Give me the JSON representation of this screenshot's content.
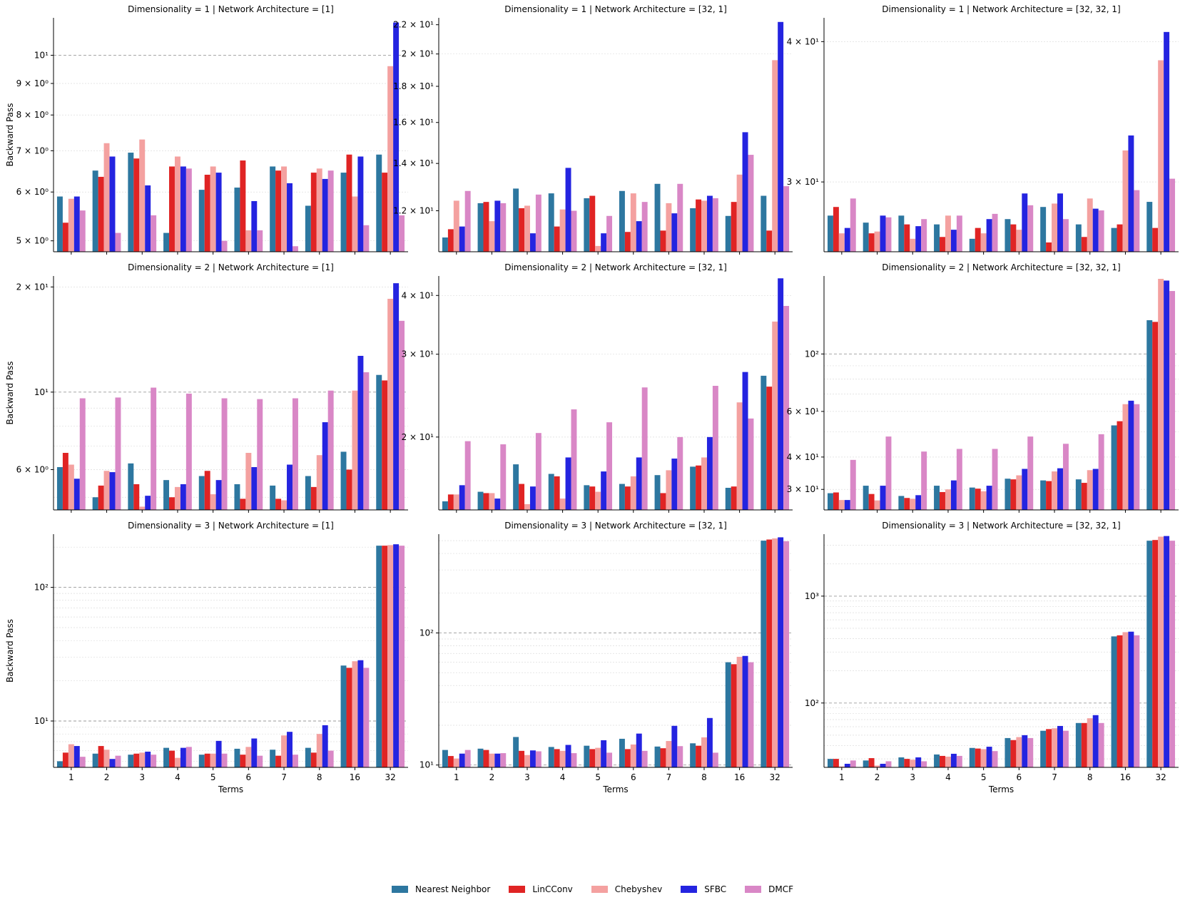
{
  "chart_data": {
    "type": "bar",
    "ylabel": "Backward Pass",
    "xlabel": "Terms",
    "categories": [
      "1",
      "2",
      "3",
      "4",
      "5",
      "6",
      "7",
      "8",
      "16",
      "32"
    ],
    "legend": {
      "placement": "bottom-center",
      "entries": [
        {
          "name": "Nearest Neighbor",
          "color": "#2d77a0"
        },
        {
          "name": "LinCConv",
          "color": "#e02424"
        },
        {
          "name": "Chebyshev",
          "color": "#f4a1a0"
        },
        {
          "name": "SFBC",
          "color": "#2424e0"
        },
        {
          "name": "DMCF",
          "color": "#d987c6"
        }
      ]
    },
    "panels": [
      {
        "title": "Dimensionality = 1 | Network Architecture = [1]",
        "yscale": "log",
        "ylim": [
          4.8,
          11.5
        ],
        "ticks": [
          {
            "v": 5,
            "label": "5 × 10⁰"
          },
          {
            "v": 6,
            "label": "6 × 10⁰"
          },
          {
            "v": 7,
            "label": "7 × 10⁰"
          },
          {
            "v": 8,
            "label": "8 × 10⁰"
          },
          {
            "v": 9,
            "label": "9 × 10⁰"
          },
          {
            "v": 10,
            "label": "10¹"
          }
        ],
        "show_ylabel": true,
        "show_xlabels": false,
        "series": [
          {
            "name": "Nearest Neighbor",
            "values": [
              5.9,
              6.5,
              6.95,
              5.15,
              6.05,
              6.1,
              6.6,
              5.7,
              6.45,
              6.9
            ]
          },
          {
            "name": "LinCConv",
            "values": [
              5.35,
              6.35,
              6.8,
              6.6,
              6.4,
              6.75,
              6.5,
              6.45,
              6.9,
              6.45
            ]
          },
          {
            "name": "Chebyshev",
            "values": [
              5.85,
              7.2,
              7.3,
              6.85,
              6.6,
              5.2,
              6.6,
              6.55,
              5.9,
              9.6
            ]
          },
          {
            "name": "SFBC",
            "values": [
              5.9,
              6.85,
              6.15,
              6.6,
              6.45,
              5.8,
              6.2,
              6.3,
              6.85,
              11.3
            ]
          },
          {
            "name": "DMCF",
            "values": [
              5.6,
              5.15,
              5.5,
              6.55,
              5.0,
              5.2,
              4.9,
              6.5,
              5.3,
              5.5
            ]
          }
        ]
      },
      {
        "title": "Dimensionality = 1 | Network Architecture = [32, 1]",
        "yscale": "log",
        "ylim": [
          10.5,
          22.5
        ],
        "ticks": [
          {
            "v": 12,
            "label": "1.2 × 10¹"
          },
          {
            "v": 14,
            "label": "1.4 × 10¹"
          },
          {
            "v": 16,
            "label": "1.6 × 10¹"
          },
          {
            "v": 18,
            "label": "1.8 × 10¹"
          },
          {
            "v": 20,
            "label": "2 × 10¹"
          },
          {
            "v": 22,
            "label": "2.2 × 10¹"
          }
        ],
        "show_ylabel": false,
        "show_xlabels": false,
        "series": [
          {
            "name": "Nearest Neighbor",
            "values": [
              11.0,
              12.3,
              12.9,
              12.7,
              12.5,
              12.8,
              13.1,
              12.1,
              11.8,
              12.6
            ]
          },
          {
            "name": "LinCConv",
            "values": [
              11.3,
              12.35,
              12.1,
              11.4,
              12.6,
              11.2,
              11.25,
              12.45,
              12.35,
              11.25
            ]
          },
          {
            "name": "Chebyshev",
            "values": [
              12.4,
              11.6,
              12.2,
              12.05,
              10.7,
              12.7,
              12.3,
              12.4,
              13.5,
              19.6
            ]
          },
          {
            "name": "SFBC",
            "values": [
              11.4,
              12.4,
              11.15,
              13.8,
              11.15,
              11.6,
              11.9,
              12.6,
              15.5,
              22.2
            ]
          },
          {
            "name": "DMCF",
            "values": [
              12.8,
              12.3,
              12.65,
              12.0,
              11.8,
              12.35,
              13.1,
              12.5,
              14.4,
              13.0
            ]
          }
        ]
      },
      {
        "title": "Dimensionality = 1 | Network Architecture = [32, 32, 1]",
        "yscale": "log",
        "ylim": [
          26,
          42
        ],
        "ticks": [
          {
            "v": 30,
            "label": "3 × 10¹"
          },
          {
            "v": 40,
            "label": "4 × 10¹"
          }
        ],
        "show_ylabel": false,
        "show_xlabels": false,
        "series": [
          {
            "name": "Nearest Neighbor",
            "values": [
              28.0,
              27.6,
              28.0,
              27.5,
              26.7,
              27.8,
              28.5,
              27.5,
              27.3,
              28.8
            ]
          },
          {
            "name": "LinCConv",
            "values": [
              28.5,
              27.0,
              27.5,
              26.8,
              27.3,
              27.5,
              26.5,
              26.8,
              27.5,
              27.3
            ]
          },
          {
            "name": "Chebyshev",
            "values": [
              27.0,
              27.1,
              26.7,
              28.0,
              27.0,
              27.2,
              28.7,
              29.0,
              32.0,
              38.5
            ]
          },
          {
            "name": "SFBC",
            "values": [
              27.3,
              28.0,
              27.4,
              27.2,
              27.8,
              29.3,
              29.3,
              28.4,
              33.0,
              40.8
            ]
          },
          {
            "name": "DMCF",
            "values": [
              29.0,
              27.9,
              27.8,
              28.0,
              28.1,
              28.6,
              27.8,
              28.3,
              29.5,
              30.2
            ]
          }
        ]
      },
      {
        "title": "Dimensionality = 2 | Network Architecture = [1]",
        "yscale": "log",
        "ylim": [
          4.6,
          21.5
        ],
        "ticks": [
          {
            "v": 6,
            "label": "6 × 10⁰"
          },
          {
            "v": 10,
            "label": "10¹"
          },
          {
            "v": 20,
            "label": "2 × 10¹"
          }
        ],
        "show_ylabel": true,
        "show_xlabels": false,
        "series": [
          {
            "name": "Nearest Neighbor",
            "values": [
              6.1,
              5.0,
              6.25,
              5.6,
              5.75,
              5.45,
              5.4,
              5.75,
              6.75,
              11.2
            ]
          },
          {
            "name": "LinCConv",
            "values": [
              6.7,
              5.4,
              5.45,
              5.0,
              5.95,
              4.95,
              4.95,
              5.35,
              6.0,
              10.8
            ]
          },
          {
            "name": "Chebyshev",
            "values": [
              6.2,
              5.95,
              4.7,
              5.35,
              5.1,
              6.7,
              4.9,
              6.6,
              10.1,
              18.5
            ]
          },
          {
            "name": "SFBC",
            "values": [
              5.65,
              5.9,
              5.05,
              5.45,
              5.6,
              6.1,
              6.2,
              8.2,
              12.7,
              20.5
            ]
          },
          {
            "name": "DMCF",
            "values": [
              9.6,
              9.65,
              10.3,
              9.9,
              9.6,
              9.55,
              9.6,
              10.1,
              11.4,
              16.0
            ]
          }
        ]
      },
      {
        "title": "Dimensionality = 2 | Network Architecture = [32, 1]",
        "yscale": "log",
        "ylim": [
          14,
          44
        ],
        "ticks": [
          {
            "v": 20,
            "label": "2 × 10¹"
          },
          {
            "v": 30,
            "label": "3 × 10¹"
          },
          {
            "v": 40,
            "label": "4 × 10¹"
          }
        ],
        "show_ylabel": false,
        "show_xlabels": false,
        "series": [
          {
            "name": "Nearest Neighbor",
            "values": [
              14.6,
              15.3,
              17.5,
              16.7,
              15.8,
              15.9,
              16.6,
              17.3,
              15.6,
              27.0
            ]
          },
          {
            "name": "LinCConv",
            "values": [
              15.1,
              15.2,
              15.9,
              16.5,
              15.7,
              15.7,
              15.2,
              17.4,
              15.7,
              25.6
            ]
          },
          {
            "name": "Chebyshev",
            "values": [
              15.1,
              15.2,
              14.4,
              14.8,
              15.3,
              16.5,
              17.0,
              18.1,
              23.7,
              35.2
            ]
          },
          {
            "name": "SFBC",
            "values": [
              15.8,
              14.8,
              15.7,
              18.1,
              16.9,
              18.1,
              18.0,
              20.0,
              27.5,
              43.5
            ]
          },
          {
            "name": "DMCF",
            "values": [
              19.6,
              19.3,
              20.4,
              22.9,
              21.5,
              25.5,
              20.0,
              25.7,
              21.9,
              38.0
            ]
          }
        ]
      },
      {
        "title": "Dimensionality = 2 | Network Architecture = [32, 32, 1]",
        "yscale": "log",
        "ylim": [
          25,
          200
        ],
        "ticks": [
          {
            "v": 30,
            "label": "3 × 10¹"
          },
          {
            "v": 40,
            "label": "4 × 10¹"
          },
          {
            "v": 60,
            "label": "6 × 10¹"
          },
          {
            "v": 100,
            "label": "10²"
          }
        ],
        "show_ylabel": false,
        "show_xlabels": false,
        "series": [
          {
            "name": "Nearest Neighbor",
            "values": [
              29.0,
              31.0,
              28.3,
              31.0,
              30.5,
              33.0,
              32.5,
              32.8,
              53.0,
              135.0
            ]
          },
          {
            "name": "LinCConv",
            "values": [
              29.2,
              28.8,
              27.8,
              29.3,
              30.2,
              32.8,
              32.3,
              31.8,
              55.0,
              133.0
            ]
          },
          {
            "name": "Chebyshev",
            "values": [
              27.3,
              27.2,
              27.6,
              30.0,
              29.5,
              34.0,
              35.2,
              35.6,
              64.0,
              195.0
            ]
          },
          {
            "name": "SFBC",
            "values": [
              27.3,
              31.0,
              28.5,
              32.5,
              31.0,
              36.0,
              36.2,
              36.0,
              66.0,
              192.0
            ]
          },
          {
            "name": "DMCF",
            "values": [
              39.0,
              48.0,
              42.0,
              43.0,
              43.0,
              48.0,
              45.0,
              49.0,
              64.0,
              175.0
            ]
          }
        ]
      },
      {
        "title": "Dimensionality = 3 | Network Architecture = [1]",
        "yscale": "log",
        "ylim": [
          4.5,
          250
        ],
        "ticks": [
          {
            "v": 10,
            "label": "10¹"
          },
          {
            "v": 100,
            "label": "10²"
          }
        ],
        "show_ylabel": true,
        "show_xlabels": true,
        "series": [
          {
            "name": "Nearest Neighbor",
            "values": [
              5.0,
              5.7,
              5.6,
              6.3,
              5.6,
              6.2,
              6.1,
              6.3,
              26.0,
              205.0
            ]
          },
          {
            "name": "LinCConv",
            "values": [
              5.8,
              6.5,
              5.7,
              6.0,
              5.7,
              5.6,
              5.5,
              5.8,
              25.0,
              205.0
            ]
          },
          {
            "name": "Chebyshev",
            "values": [
              6.7,
              6.1,
              5.8,
              5.3,
              5.7,
              6.4,
              7.8,
              8.0,
              28.0,
              207.0
            ]
          },
          {
            "name": "SFBC",
            "values": [
              6.5,
              5.2,
              5.9,
              6.3,
              7.1,
              7.4,
              8.3,
              9.3,
              28.5,
              210.0
            ]
          },
          {
            "name": "DMCF",
            "values": [
              5.4,
              5.5,
              5.6,
              6.4,
              5.7,
              5.5,
              5.6,
              6.0,
              25.0,
              205.0
            ]
          }
        ]
      },
      {
        "title": "Dimensionality = 3 | Network Architecture = [32, 1]",
        "yscale": "log",
        "ylim": [
          9.6,
          560
        ],
        "ticks": [
          {
            "v": 10,
            "label": "10¹"
          },
          {
            "v": 100,
            "label": "10²"
          }
        ],
        "show_ylabel": false,
        "show_xlabels": true,
        "series": [
          {
            "name": "Nearest Neighbor",
            "values": [
              13.0,
              13.3,
              16.3,
              13.7,
              14.0,
              15.8,
              13.8,
              14.6,
              60.0,
              500.0
            ]
          },
          {
            "name": "LinCConv",
            "values": [
              11.7,
              13.0,
              12.8,
              13.2,
              13.2,
              13.2,
              13.4,
              14.0,
              58.0,
              510.0
            ]
          },
          {
            "name": "Chebyshev",
            "values": [
              11.2,
              12.2,
              11.9,
              12.8,
              13.5,
              14.3,
              15.2,
              16.2,
              66.0,
              520.0
            ]
          },
          {
            "name": "SFBC",
            "values": [
              12.2,
              12.2,
              12.9,
              14.2,
              15.4,
              17.3,
              19.8,
              22.7,
              67.0,
              530.0
            ]
          },
          {
            "name": "DMCF",
            "values": [
              13.0,
              12.3,
              12.7,
              12.3,
              12.4,
              12.8,
              13.9,
              12.4,
              60.0,
              495.0
            ]
          }
        ]
      },
      {
        "title": "Dimensionality = 3 | Network Architecture = [32, 32, 1]",
        "yscale": "log",
        "ylim": [
          25,
          3800
        ],
        "ticks": [
          {
            "v": 100,
            "label": "10²"
          },
          {
            "v": 1000,
            "label": "10³"
          }
        ],
        "show_ylabel": false,
        "show_xlabels": true,
        "series": [
          {
            "name": "Nearest Neighbor",
            "values": [
              30.0,
              29.0,
              31.0,
              33.0,
              38.0,
              47.0,
              55.0,
              65.0,
              420.0,
              3300.0
            ]
          },
          {
            "name": "LinCConv",
            "values": [
              30.0,
              30.5,
              30.0,
              32.0,
              37.5,
              45.0,
              57.0,
              65.0,
              430.0,
              3350.0
            ]
          },
          {
            "name": "Chebyshev",
            "values": [
              25.5,
              26.0,
              29.5,
              31.5,
              37.0,
              48.0,
              58.0,
              72.0,
              460.0,
              3600.0
            ]
          },
          {
            "name": "SFBC",
            "values": [
              27.0,
              27.0,
              31.0,
              33.5,
              39.0,
              50.0,
              61.0,
              77.0,
              465.0,
              3650.0
            ]
          },
          {
            "name": "DMCF",
            "values": [
              29.0,
              28.5,
              28.5,
              32.0,
              35.5,
              47.0,
              55.0,
              65.0,
              430.0,
              3300.0
            ]
          }
        ]
      }
    ]
  }
}
